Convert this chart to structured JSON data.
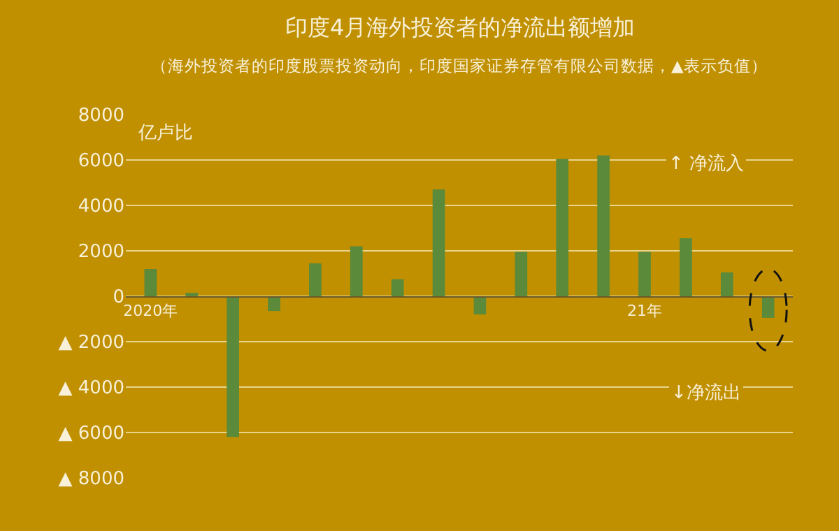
{
  "chart_data": {
    "type": "bar",
    "title": "印度4月海外投资者的净流出额增加",
    "subtitle": "（海外投资者的印度股票投资动向，印度国家证券存管有限公司数据，▲表示负值）",
    "ylabel": "亿卢比",
    "categories": [
      "2020年",
      null,
      null,
      null,
      null,
      null,
      null,
      null,
      null,
      null,
      null,
      null,
      "21年",
      null,
      null,
      null
    ],
    "values": [
      1200,
      150,
      -6200,
      -650,
      1450,
      2200,
      750,
      4700,
      -800,
      1950,
      6050,
      6200,
      1950,
      2550,
      1050,
      -950
    ],
    "color": "#5a8a3a",
    "ylim": [
      -8000,
      8000
    ],
    "yticks": [
      {
        "value": -8000,
        "label": "▲ 8000"
      },
      {
        "value": -6000,
        "label": "▲ 6000"
      },
      {
        "value": -4000,
        "label": "▲ 4000"
      },
      {
        "value": -2000,
        "label": "▲ 2000"
      },
      0,
      2000,
      4000,
      6000,
      8000
    ],
    "grid": "y",
    "annotations": [
      "↑ 净流入",
      "↓净流出"
    ]
  }
}
